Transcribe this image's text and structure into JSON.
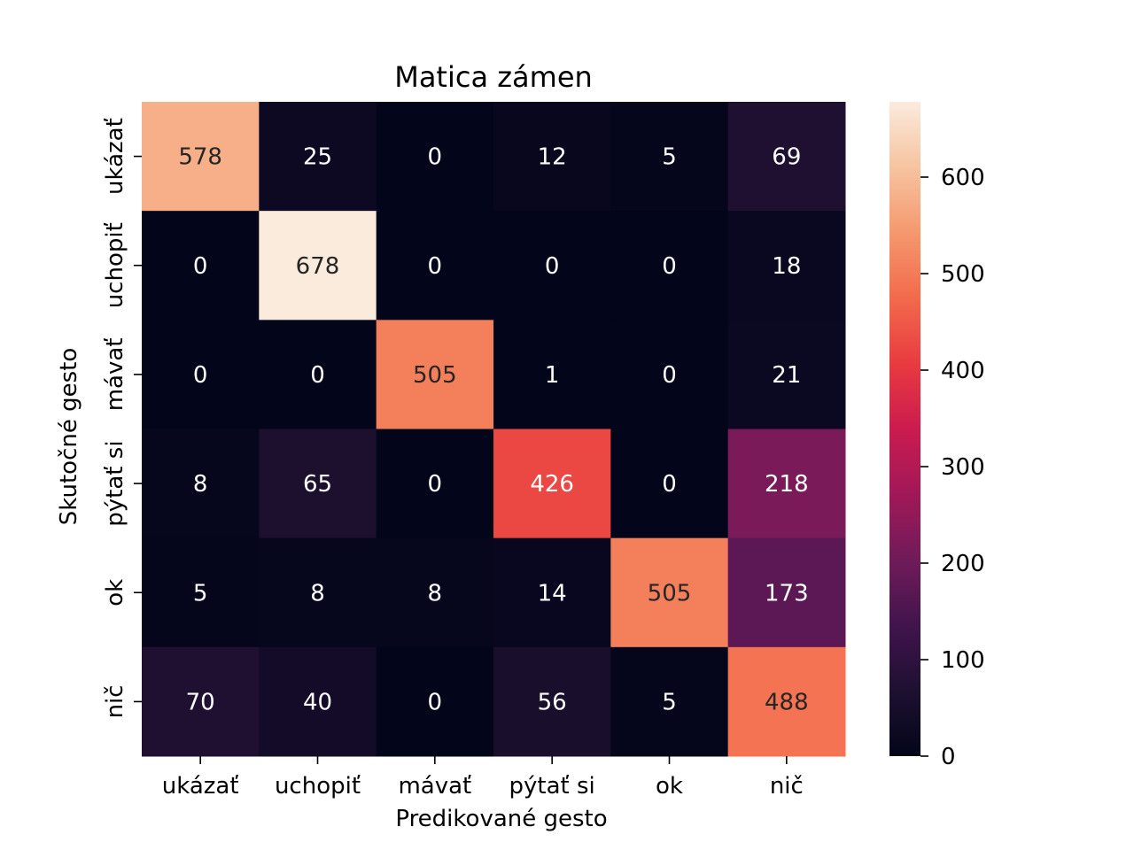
{
  "chart_data": {
    "type": "heatmap",
    "title": "Matica zámen",
    "xlabel": "Predikované gesto",
    "ylabel": "Skutočné gesto",
    "x_categories": [
      "ukázať",
      "uchopiť",
      "mávať",
      "pýtať si",
      "ok",
      "nič"
    ],
    "y_categories": [
      "ukázať",
      "uchopiť",
      "mávať",
      "pýtať si",
      "ok",
      "nič"
    ],
    "values": [
      [
        578,
        25,
        0,
        12,
        5,
        69
      ],
      [
        0,
        678,
        0,
        0,
        0,
        18
      ],
      [
        0,
        0,
        505,
        1,
        0,
        21
      ],
      [
        8,
        65,
        0,
        426,
        0,
        218
      ],
      [
        5,
        8,
        8,
        14,
        505,
        173
      ],
      [
        70,
        40,
        0,
        56,
        5,
        488
      ]
    ],
    "colorbar": {
      "min": 0,
      "max": 678,
      "ticks": [
        0,
        100,
        200,
        300,
        400,
        500,
        600
      ],
      "colormap": "rocket"
    },
    "grid": false
  }
}
